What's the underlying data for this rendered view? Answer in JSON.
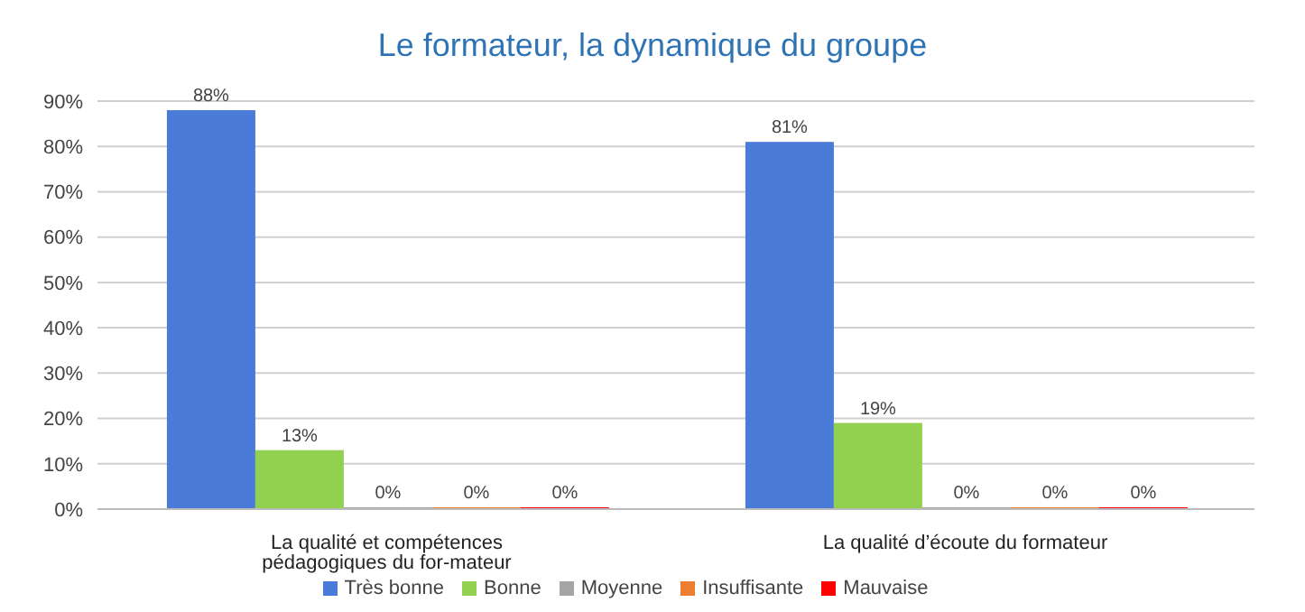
{
  "chart_data": {
    "type": "bar",
    "title": "Le formateur, la dynamique du groupe",
    "categories": [
      "La qualité et compétences pédagogiques  du for-mateur",
      "La qualité d’écoute du formateur"
    ],
    "series": [
      {
        "name": "Très bonne",
        "color": "#4a7bd8",
        "values": [
          88,
          81
        ],
        "value_labels": [
          "88%",
          "81%"
        ]
      },
      {
        "name": "Bonne",
        "color": "#92d050",
        "values": [
          13,
          19
        ],
        "value_labels": [
          "13%",
          "19%"
        ]
      },
      {
        "name": "Moyenne",
        "color": "#a5a5a5",
        "values": [
          0,
          0
        ],
        "value_labels": [
          "0%",
          "0%"
        ]
      },
      {
        "name": "Insuffisante",
        "color": "#ed7d31",
        "values": [
          0,
          0
        ],
        "value_labels": [
          "0%",
          "0%"
        ]
      },
      {
        "name": "Mauvaise",
        "color": "#ff0000",
        "values": [
          0,
          0
        ],
        "value_labels": [
          "0%",
          "0%"
        ]
      }
    ],
    "ylim": [
      0,
      90
    ],
    "yticks": [
      {
        "value": 0,
        "label": "0%"
      },
      {
        "value": 10,
        "label": "10%"
      },
      {
        "value": 20,
        "label": "20%"
      },
      {
        "value": 30,
        "label": "30%"
      },
      {
        "value": 40,
        "label": "40%"
      },
      {
        "value": 50,
        "label": "50%"
      },
      {
        "value": 60,
        "label": "60%"
      },
      {
        "value": 70,
        "label": "70%"
      },
      {
        "value": 80,
        "label": "80%"
      },
      {
        "value": 90,
        "label": "90%"
      }
    ],
    "grid": "y",
    "legend": "bottom"
  }
}
